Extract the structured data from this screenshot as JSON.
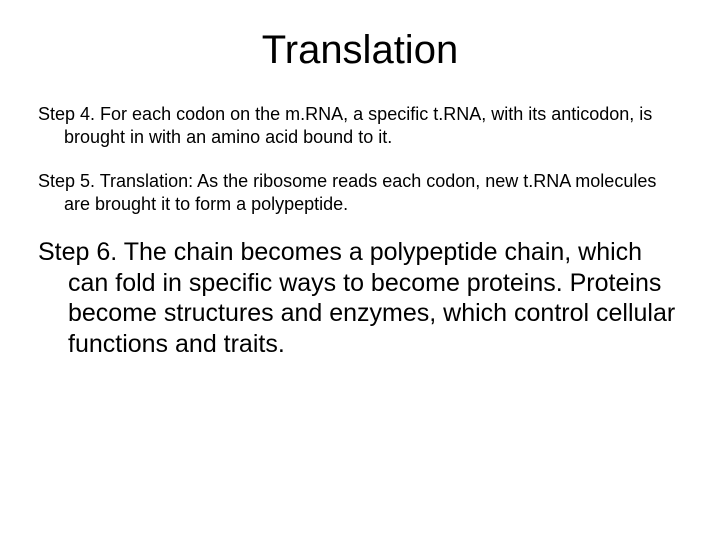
{
  "title": "Translation",
  "steps": {
    "step4": "Step 4.  For each codon  on the m.RNA, a specific t.RNA, with its anticodon, is brought in with an amino acid bound to it.",
    "step5": "Step 5.  Translation: As the ribosome reads each codon, new t.RNA molecules are brought it to form a polypeptide.",
    "step6": "Step 6.  The chain becomes a polypeptide chain, which can fold in specific ways to become proteins. Proteins become structures and enzymes, which control cellular functions and traits."
  },
  "colors": {
    "background": "#ffffff",
    "text": "#000000"
  },
  "typography": {
    "title_fontsize": 40,
    "small_step_fontsize": 18,
    "large_step_fontsize": 25,
    "font_family": "Arial"
  }
}
